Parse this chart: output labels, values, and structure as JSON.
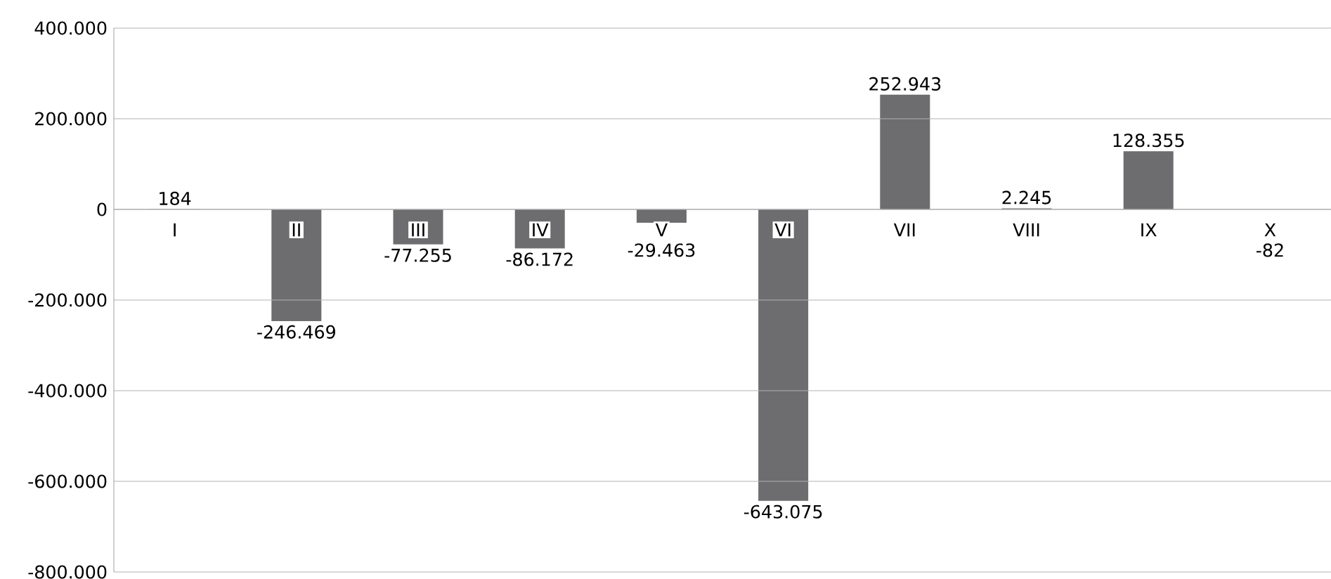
{
  "chart_data": {
    "type": "bar",
    "categories": [
      "I",
      "II",
      "III",
      "IV",
      "V",
      "VI",
      "VII",
      "VIII",
      "IX",
      "X"
    ],
    "values": [
      184,
      -246469,
      -77255,
      -86172,
      -29463,
      -643075,
      252943,
      2245,
      128355,
      -82
    ],
    "value_labels": [
      "184",
      "-246.469",
      "-77.255",
      "-86.172",
      "-29.463",
      "-643.075",
      "252.943",
      "2.245",
      "128.355",
      "-82"
    ],
    "color": "#6d6d70",
    "ylim": [
      -800000,
      400000
    ],
    "yticks": [
      {
        "value": -800000,
        "label": "-800.000"
      },
      {
        "value": -600000,
        "label": "-600.000"
      },
      {
        "value": -400000,
        "label": "-400.000"
      },
      {
        "value": -200000,
        "label": "-200.000"
      },
      {
        "value": 0,
        "label": "0"
      },
      {
        "value": 200000,
        "label": "200.000"
      },
      {
        "value": 400000,
        "label": "400.000"
      }
    ],
    "grid": "y"
  }
}
